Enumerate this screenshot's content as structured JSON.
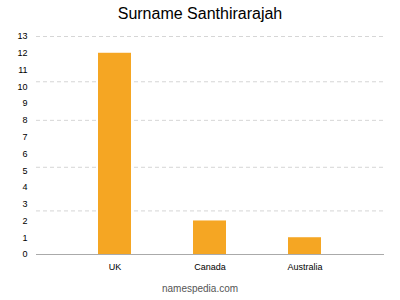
{
  "chart_data": {
    "type": "bar",
    "title": "Surname Santhirarajah",
    "categories": [
      "UK",
      "Canada",
      "Australia"
    ],
    "values": [
      12,
      2,
      1
    ],
    "color": "#F5A623",
    "ylim": [
      0,
      13
    ],
    "yticks": [
      0,
      1,
      2,
      3,
      4,
      5,
      6,
      7,
      8,
      9,
      10,
      11,
      12,
      13
    ],
    "grid": [
      13,
      10.3,
      8,
      5.2,
      2.6
    ],
    "caption": "namespedia.com"
  }
}
